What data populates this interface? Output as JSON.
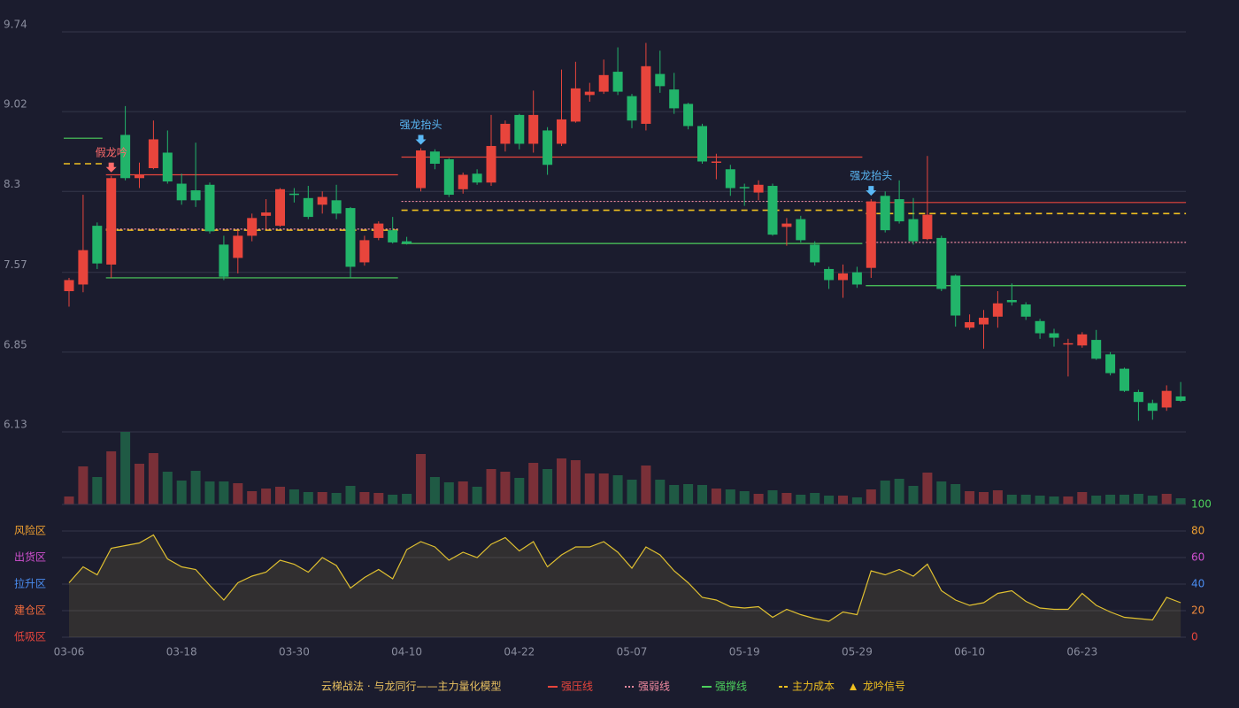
{
  "legend_title": "云梯战法 · 与龙同行——主力量化模型",
  "chart_data": [
    {
      "type": "candlestick",
      "categories": [
        "03-06",
        null,
        null,
        null,
        null,
        null,
        null,
        null,
        "03-18",
        null,
        null,
        null,
        null,
        null,
        null,
        null,
        "03-30",
        null,
        null,
        null,
        null,
        null,
        null,
        null,
        "04-10",
        null,
        null,
        null,
        null,
        null,
        null,
        null,
        "04-22",
        null,
        null,
        null,
        null,
        null,
        null,
        null,
        "05-07",
        null,
        null,
        null,
        null,
        null,
        null,
        null,
        "05-19",
        null,
        null,
        null,
        null,
        null,
        null,
        null,
        "05-29",
        null,
        null,
        null,
        null,
        null,
        null,
        null,
        "06-10",
        null,
        null,
        null,
        null,
        null,
        null,
        null,
        "06-23",
        null,
        null,
        null,
        null,
        null,
        null,
        null
      ],
      "open": [
        7.4,
        7.46,
        7.99,
        7.64,
        8.81,
        8.42,
        8.51,
        8.65,
        8.37,
        8.31,
        8.36,
        7.82,
        7.7,
        7.9,
        8.08,
        7.99,
        8.28,
        8.24,
        8.18,
        8.22,
        8.15,
        7.66,
        7.88,
        7.95,
        7.85,
        8.33,
        8.66,
        8.59,
        8.32,
        8.46,
        8.38,
        8.73,
        8.99,
        8.73,
        8.85,
        8.73,
        8.93,
        9.17,
        9.2,
        9.38,
        9.16,
        8.91,
        9.36,
        9.22,
        9.09,
        8.89,
        8.56,
        8.5,
        8.34,
        8.29,
        8.35,
        7.98,
        8.05,
        7.82,
        7.6,
        7.5,
        7.57,
        7.61,
        8.26,
        8.23,
        8.05,
        7.87,
        7.88,
        7.54,
        7.07,
        7.1,
        7.17,
        7.32,
        7.28,
        7.13,
        7.02,
        6.92,
        6.91,
        6.96,
        6.83,
        6.7,
        6.49,
        6.39,
        6.35,
        6.45
      ],
      "high": [
        7.52,
        8.27,
        8.02,
        8.44,
        9.07,
        8.56,
        8.94,
        8.85,
        8.46,
        8.74,
        8.38,
        7.9,
        7.95,
        8.1,
        8.23,
        8.33,
        8.33,
        8.35,
        8.3,
        8.36,
        8.16,
        7.9,
        8.03,
        8.07,
        7.89,
        8.69,
        8.68,
        8.6,
        8.47,
        8.5,
        8.99,
        8.94,
        9.0,
        9.21,
        8.88,
        9.4,
        9.47,
        9.28,
        9.49,
        9.6,
        9.18,
        9.64,
        9.57,
        9.37,
        9.1,
        8.91,
        8.64,
        8.54,
        8.37,
        8.4,
        8.37,
        8.06,
        8.08,
        7.85,
        7.62,
        7.64,
        7.62,
        8.23,
        8.3,
        8.4,
        8.24,
        8.62,
        7.9,
        7.55,
        7.19,
        7.23,
        7.4,
        7.47,
        7.3,
        7.15,
        7.06,
        6.97,
        7.03,
        7.05,
        6.85,
        6.71,
        6.51,
        6.42,
        6.55,
        6.58
      ],
      "low": [
        7.26,
        7.39,
        7.6,
        7.52,
        8.4,
        8.33,
        8.5,
        8.37,
        8.18,
        8.16,
        7.92,
        7.5,
        7.56,
        7.85,
        7.96,
        7.98,
        8.2,
        8.05,
        8.1,
        8.05,
        7.52,
        7.63,
        7.86,
        7.83,
        7.82,
        8.3,
        8.5,
        8.25,
        8.28,
        8.36,
        8.35,
        8.66,
        8.68,
        8.65,
        8.45,
        8.71,
        8.92,
        9.11,
        9.18,
        9.17,
        8.87,
        8.85,
        9.19,
        9.0,
        8.86,
        8.55,
        8.41,
        8.26,
        8.17,
        8.22,
        7.9,
        7.81,
        7.84,
        7.63,
        7.42,
        7.34,
        7.43,
        7.52,
        7.93,
        8.01,
        7.82,
        7.86,
        7.4,
        7.08,
        7.05,
        6.88,
        7.07,
        7.27,
        7.14,
        6.97,
        6.9,
        6.63,
        6.89,
        6.78,
        6.64,
        6.49,
        6.23,
        6.24,
        6.32,
        6.4
      ],
      "close": [
        7.5,
        7.77,
        7.65,
        8.42,
        8.42,
        8.45,
        8.77,
        8.39,
        8.22,
        8.22,
        7.94,
        7.53,
        7.9,
        8.06,
        8.11,
        8.32,
        8.27,
        8.07,
        8.25,
        8.1,
        7.62,
        7.86,
        8.01,
        7.84,
        7.83,
        8.67,
        8.55,
        8.27,
        8.45,
        8.38,
        8.71,
        8.91,
        8.73,
        8.99,
        8.54,
        8.95,
        9.23,
        9.2,
        9.35,
        9.2,
        8.94,
        9.43,
        9.25,
        9.05,
        8.89,
        8.57,
        8.57,
        8.33,
        8.33,
        8.36,
        7.91,
        8.01,
        7.86,
        7.66,
        7.5,
        7.56,
        7.46,
        8.21,
        7.95,
        8.03,
        7.85,
        8.09,
        7.42,
        7.18,
        7.12,
        7.16,
        7.29,
        7.3,
        7.17,
        7.02,
        6.98,
        6.93,
        7.01,
        6.79,
        6.66,
        6.5,
        6.4,
        6.32,
        6.5,
        6.41
      ],
      "ylim": [
        6.13,
        9.74
      ],
      "yticks": [
        6.13,
        6.85,
        7.57,
        8.3,
        9.02,
        9.74
      ],
      "grid": true,
      "up_color": "#e8453c",
      "down_color": "#22b46a",
      "series": [
        {
          "name": "强压线",
          "color": "#e8453c",
          "style": "solid",
          "segments": [
            {
              "from": 3,
              "to": 23,
              "value": 8.45
            },
            {
              "from": 24,
              "to": 56,
              "value": 8.61
            },
            {
              "from": 57,
              "to": 79,
              "value": 8.2
            }
          ]
        },
        {
          "name": "强弱线",
          "color": "#f08aa0",
          "style": "dotted",
          "segments": [
            {
              "from": 3,
              "to": 23,
              "value": 7.96
            },
            {
              "from": 24,
              "to": 56,
              "value": 8.21
            },
            {
              "from": 57,
              "to": 79,
              "value": 7.84
            }
          ]
        },
        {
          "name": "强撑线",
          "color": "#4ccf5c",
          "style": "solid",
          "segments": [
            {
              "from": 0,
              "to": 2,
              "value": 8.78
            },
            {
              "from": 3,
              "to": 23,
              "value": 7.52
            },
            {
              "from": 24,
              "to": 56,
              "value": 7.83
            },
            {
              "from": 57,
              "to": 79,
              "value": 7.45
            }
          ]
        },
        {
          "name": "主力成本",
          "color": "#f0c020",
          "style": "dashed",
          "segments": [
            {
              "from": 0,
              "to": 2,
              "value": 8.55
            },
            {
              "from": 3,
              "to": 23,
              "value": 7.95
            },
            {
              "from": 24,
              "to": 56,
              "value": 8.13
            },
            {
              "from": 57,
              "to": 79,
              "value": 8.1
            }
          ]
        }
      ],
      "signal_name": "龙吟信号",
      "signal_color": "#f0c020",
      "signals": [
        {
          "label": "假龙吟",
          "index": 3,
          "color": "#ff6b6b"
        },
        {
          "label": "强龙抬头",
          "index": 25,
          "color": "#5ab8f5"
        },
        {
          "label": "强龙抬头",
          "index": 57,
          "color": "#5ab8f5"
        }
      ]
    },
    {
      "type": "bar",
      "values": [
        9,
        43,
        31,
        60,
        82,
        46,
        58,
        37,
        27,
        38,
        26,
        26,
        24,
        15,
        18,
        20,
        17,
        14,
        14,
        13,
        21,
        14,
        13,
        11,
        12,
        57,
        31,
        25,
        26,
        20,
        40,
        37,
        30,
        47,
        40,
        52,
        50,
        35,
        35,
        33,
        28,
        44,
        28,
        22,
        23,
        22,
        18,
        17,
        15,
        12,
        16,
        13,
        11,
        13,
        10,
        10,
        8,
        17,
        27,
        29,
        21,
        36,
        26,
        23,
        15,
        14,
        16,
        11,
        11,
        10,
        9,
        9,
        14,
        10,
        11,
        11,
        12,
        10,
        12,
        7
      ],
      "up_color": "#7a3038",
      "down_color": "#1f5a44"
    },
    {
      "type": "line",
      "values": [
        41,
        53,
        47,
        67,
        69,
        71,
        77,
        59,
        53,
        51,
        39,
        28,
        41,
        46,
        49,
        58,
        55,
        49,
        60,
        54,
        37,
        45,
        51,
        44,
        66,
        72,
        68,
        58,
        64,
        60,
        70,
        75,
        65,
        72,
        53,
        62,
        68,
        68,
        72,
        64,
        52,
        68,
        62,
        50,
        41,
        30,
        28,
        23,
        22,
        23,
        15,
        21,
        17,
        14,
        12,
        19,
        17,
        50,
        47,
        51,
        46,
        55,
        35,
        28,
        24,
        26,
        33,
        35,
        27,
        22,
        21,
        21,
        33,
        24,
        19,
        15,
        14,
        13,
        30,
        26
      ],
      "color": "#e0c030",
      "ylim": [
        0,
        100
      ],
      "yticks": [
        0,
        20,
        40,
        60,
        80,
        100
      ],
      "ytick_colors": [
        "#e8453c",
        "#f08a3c",
        "#4a8cf0",
        "#d050d0",
        "#f0a030",
        "#4ccf5c"
      ],
      "zones": [
        {
          "value": 80,
          "label": "风险区",
          "color": "#f0a030"
        },
        {
          "value": 60,
          "label": "出货区",
          "color": "#d050d0"
        },
        {
          "value": 40,
          "label": "拉升区",
          "color": "#4a8cf0"
        },
        {
          "value": 20,
          "label": "建仓区",
          "color": "#f06a3c"
        },
        {
          "value": 0,
          "label": "低吸区",
          "color": "#e8453c"
        }
      ]
    }
  ]
}
